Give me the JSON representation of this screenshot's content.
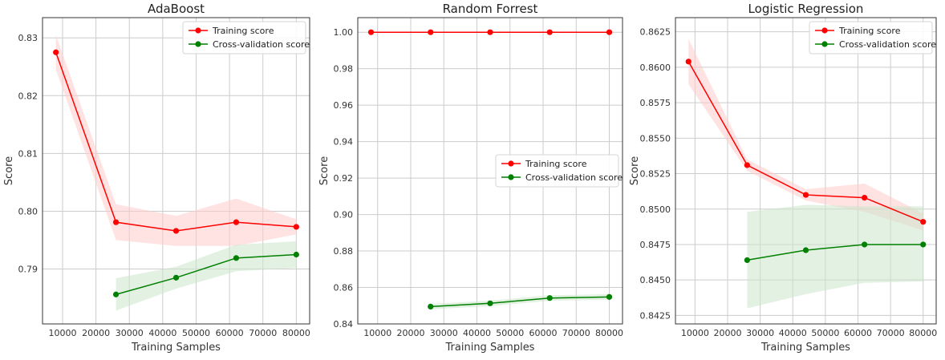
{
  "chart_data": [
    {
      "type": "line",
      "title": "AdaBoost",
      "xlabel": "Training Samples",
      "ylabel": "Score",
      "xlim": [
        4000,
        84000
      ],
      "ylim": [
        0.7805,
        0.8335
      ],
      "xticks": [
        10000,
        20000,
        30000,
        40000,
        50000,
        60000,
        70000,
        80000
      ],
      "xtick_labels": [
        "10000",
        "20000",
        "30000",
        "40000",
        "50000",
        "60000",
        "70000",
        "80000"
      ],
      "yticks": [
        0.79,
        0.8,
        0.81,
        0.82,
        0.83
      ],
      "ytick_labels": [
        "0.79",
        "0.80",
        "0.81",
        "0.82",
        "0.83"
      ],
      "grid": true,
      "legend_position": "top-right",
      "series": [
        {
          "name": "Training score",
          "color": "#ff0000",
          "band_color": "#ffcccc",
          "x": [
            8000,
            26000,
            44000,
            62000,
            80000
          ],
          "y": [
            0.8275,
            0.7981,
            0.7966,
            0.7981,
            0.7973
          ],
          "lower": [
            0.8245,
            0.795,
            0.794,
            0.794,
            0.796
          ],
          "upper": [
            0.8305,
            0.8012,
            0.7992,
            0.8022,
            0.7986
          ]
        },
        {
          "name": "Cross-validation score",
          "color": "#008000",
          "band_color": "#cce6cc",
          "x": [
            26000,
            44000,
            62000,
            80000
          ],
          "y": [
            0.7856,
            0.7885,
            0.7919,
            0.7925
          ],
          "lower": [
            0.7828,
            0.7866,
            0.7896,
            0.7902
          ],
          "upper": [
            0.7884,
            0.7904,
            0.7942,
            0.7948
          ]
        }
      ]
    },
    {
      "type": "line",
      "title": "Random Forrest",
      "xlabel": "Training Samples",
      "ylabel": "Score",
      "xlim": [
        4000,
        84000
      ],
      "ylim": [
        0.84,
        1.008
      ],
      "xticks": [
        10000,
        20000,
        30000,
        40000,
        50000,
        60000,
        70000,
        80000
      ],
      "xtick_labels": [
        "10000",
        "20000",
        "30000",
        "40000",
        "50000",
        "60000",
        "70000",
        "80000"
      ],
      "yticks": [
        0.84,
        0.86,
        0.88,
        0.9,
        0.92,
        0.94,
        0.96,
        0.98,
        1.0
      ],
      "ytick_labels": [
        "0.84",
        "0.86",
        "0.88",
        "0.90",
        "0.92",
        "0.94",
        "0.96",
        "0.98",
        "1.00"
      ],
      "grid": true,
      "legend_position": "center-right",
      "series": [
        {
          "name": "Training score",
          "color": "#ff0000",
          "band_color": "#ffcccc",
          "x": [
            8000,
            26000,
            44000,
            62000,
            80000
          ],
          "y": [
            1.0,
            1.0,
            1.0,
            1.0,
            1.0
          ],
          "lower": [
            1.0,
            1.0,
            1.0,
            1.0,
            1.0
          ],
          "upper": [
            1.0,
            1.0,
            1.0,
            1.0,
            1.0
          ]
        },
        {
          "name": "Cross-validation score",
          "color": "#008000",
          "band_color": "#cce6cc",
          "x": [
            26000,
            44000,
            62000,
            80000
          ],
          "y": [
            0.8495,
            0.8513,
            0.8542,
            0.8548
          ],
          "lower": [
            0.848,
            0.8498,
            0.8527,
            0.8533
          ],
          "upper": [
            0.851,
            0.8528,
            0.8557,
            0.8563
          ]
        }
      ]
    },
    {
      "type": "line",
      "title": "Logistic Regression",
      "xlabel": "Training Samples",
      "ylabel": "Score",
      "xlim": [
        4000,
        84000
      ],
      "ylim": [
        0.8419,
        0.8635
      ],
      "xticks": [
        10000,
        20000,
        30000,
        40000,
        50000,
        60000,
        70000,
        80000
      ],
      "xtick_labels": [
        "10000",
        "20000",
        "30000",
        "40000",
        "50000",
        "60000",
        "70000",
        "80000"
      ],
      "yticks": [
        0.8425,
        0.845,
        0.8475,
        0.85,
        0.8525,
        0.855,
        0.8575,
        0.86,
        0.8625
      ],
      "ytick_labels": [
        "0.8425",
        "0.8450",
        "0.8475",
        "0.8500",
        "0.8525",
        "0.8550",
        "0.8575",
        "0.8600",
        "0.8625"
      ],
      "grid": true,
      "legend_position": "top-right",
      "series": [
        {
          "name": "Training score",
          "color": "#ff0000",
          "band_color": "#ffcccc",
          "x": [
            8000,
            26000,
            44000,
            62000,
            80000
          ],
          "y": [
            0.8604,
            0.8531,
            0.851,
            0.8508,
            0.8491
          ],
          "lower": [
            0.8588,
            0.8527,
            0.8506,
            0.8498,
            0.8485
          ],
          "upper": [
            0.862,
            0.8535,
            0.8514,
            0.8518,
            0.8497
          ]
        },
        {
          "name": "Cross-validation score",
          "color": "#008000",
          "band_color": "#cce6cc",
          "x": [
            26000,
            44000,
            62000,
            80000
          ],
          "y": [
            0.8464,
            0.8471,
            0.8475,
            0.8475
          ],
          "lower": [
            0.843,
            0.844,
            0.8448,
            0.8449
          ],
          "upper": [
            0.8498,
            0.8503,
            0.8502,
            0.8502
          ]
        }
      ]
    }
  ]
}
